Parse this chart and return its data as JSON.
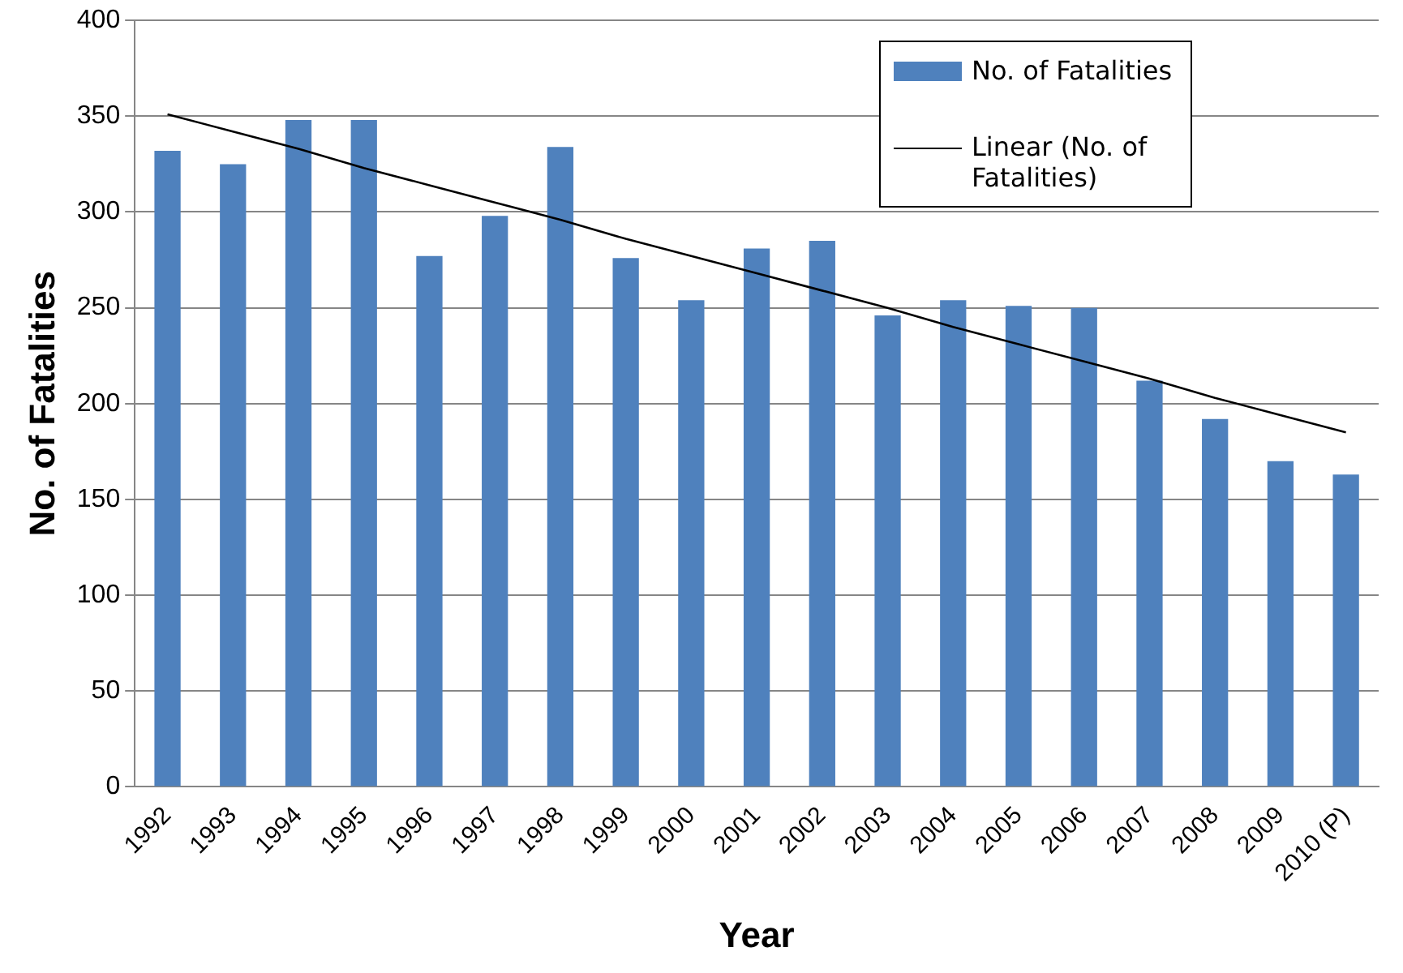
{
  "chart_data": {
    "type": "bar",
    "xlabel": "Year",
    "ylabel": "No. of Fatalities",
    "categories": [
      "1992",
      "1993",
      "1994",
      "1995",
      "1996",
      "1997",
      "1998",
      "1999",
      "2000",
      "2001",
      "2002",
      "2003",
      "2004",
      "2005",
      "2006",
      "2007",
      "2008",
      "2009",
      "2010 (P)"
    ],
    "series": [
      {
        "name": "No. of Fatalities",
        "color": "#4f81bd",
        "values": [
          332,
          325,
          348,
          348,
          277,
          298,
          334,
          276,
          254,
          281,
          285,
          246,
          254,
          251,
          250,
          212,
          192,
          170,
          163
        ]
      },
      {
        "name": "Linear (No. of Fatalities)",
        "type": "line",
        "color": "#000000",
        "values": [
          351,
          342,
          333,
          323,
          314,
          305,
          296,
          286,
          277,
          268,
          259,
          250,
          240,
          231,
          222,
          213,
          203,
          194,
          185
        ]
      }
    ],
    "ylim": [
      0,
      400
    ],
    "yticks": [
      0,
      50,
      100,
      150,
      200,
      250,
      300,
      350,
      400
    ],
    "grid": "y",
    "legend": "top right",
    "marker": "none"
  }
}
